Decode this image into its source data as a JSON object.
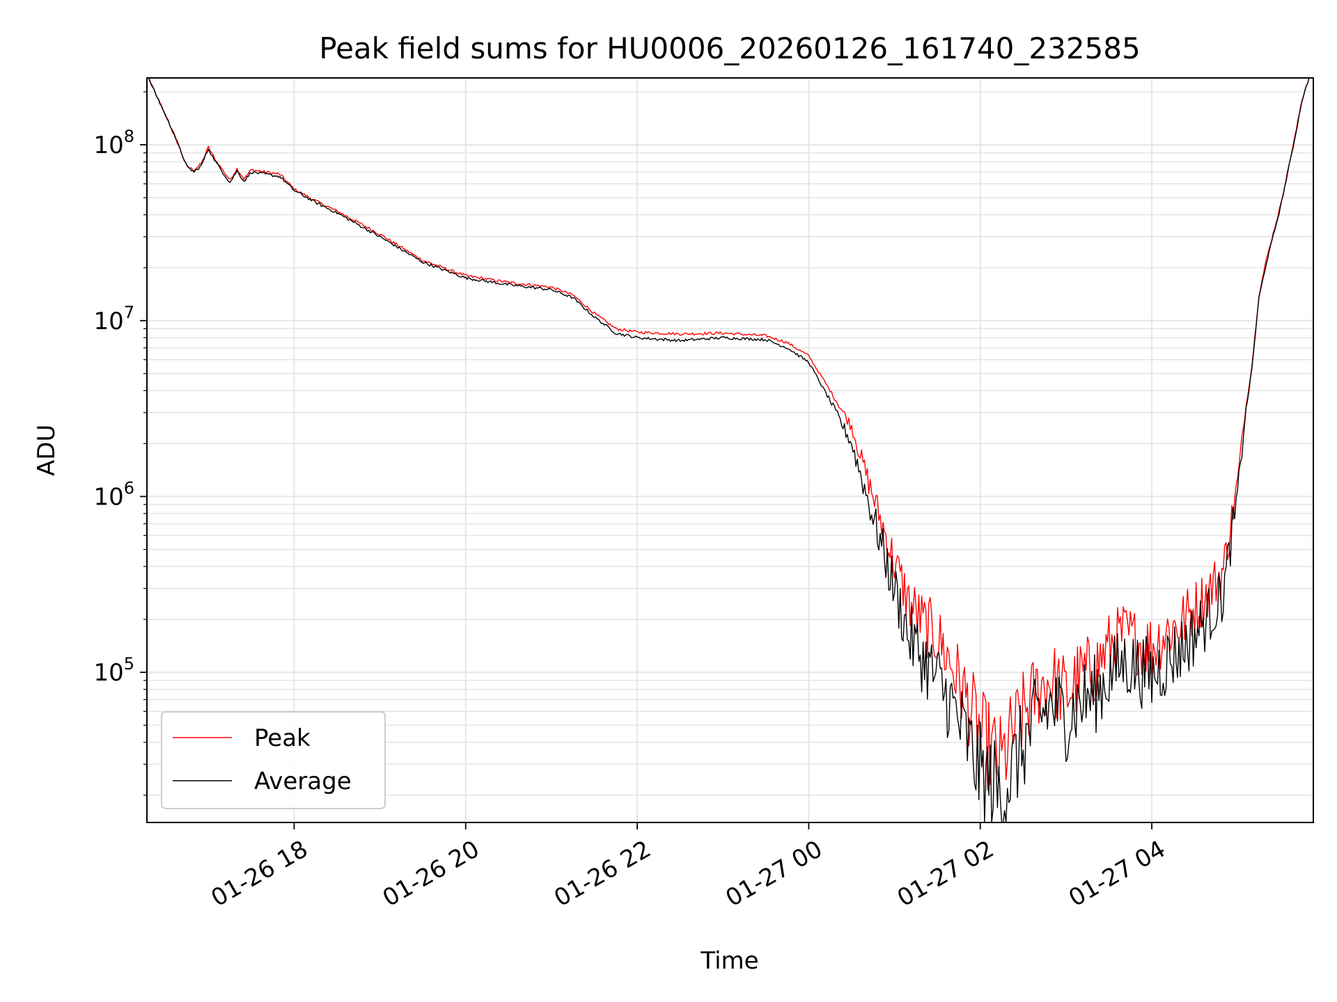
{
  "chart_data": {
    "type": "line",
    "title": "Peak field sums for HU0006_20260126_161740_232585",
    "xlabel": "Time",
    "ylabel": "ADU",
    "x_is_datetime": true,
    "xlim": [
      "2026-01-26 16:17",
      "2026-01-27 05:53"
    ],
    "ylim": [
      14000,
      240000000
    ],
    "yscale": "log",
    "grid": "on (major and minor)",
    "legend_position": "lower-left",
    "x_ticks": [
      "2026-01-26 18:00",
      "2026-01-26 20:00",
      "2026-01-26 22:00",
      "2026-01-27 00:00",
      "2026-01-27 02:00",
      "2026-01-27 04:00"
    ],
    "x_tick_labels": [
      "01-26 18",
      "01-26 20",
      "01-26 22",
      "01-27 00",
      "01-27 02",
      "01-27 04"
    ],
    "y_ticks": [
      {
        "value": 100000,
        "base": "10",
        "exp": "5"
      },
      {
        "value": 1000000,
        "base": "10",
        "exp": "6"
      },
      {
        "value": 10000000,
        "base": "10",
        "exp": "7"
      },
      {
        "value": 100000000,
        "base": "10",
        "exp": "8"
      }
    ],
    "series": [
      {
        "name": "Peak",
        "color": "#ff0000",
        "x": [
          "2026-01-26 16:18",
          "2026-01-26 16:35",
          "2026-01-26 16:40",
          "2026-01-26 16:45",
          "2026-01-26 16:50",
          "2026-01-26 16:55",
          "2026-01-26 17:00",
          "2026-01-26 17:05",
          "2026-01-26 17:10",
          "2026-01-26 17:15",
          "2026-01-26 17:20",
          "2026-01-26 17:25",
          "2026-01-26 17:30",
          "2026-01-26 17:40",
          "2026-01-26 17:50",
          "2026-01-26 18:00",
          "2026-01-26 18:15",
          "2026-01-26 18:30",
          "2026-01-26 19:00",
          "2026-01-26 19:30",
          "2026-01-26 20:00",
          "2026-01-26 20:30",
          "2026-01-26 21:00",
          "2026-01-26 21:15",
          "2026-01-26 21:30",
          "2026-01-26 21:45",
          "2026-01-26 22:00",
          "2026-01-26 22:30",
          "2026-01-26 23:00",
          "2026-01-26 23:30",
          "2026-01-26 23:45",
          "2026-01-27 00:00",
          "2026-01-27 00:15",
          "2026-01-27 00:30",
          "2026-01-27 00:40",
          "2026-01-27 00:50",
          "2026-01-27 01:00",
          "2026-01-27 01:10",
          "2026-01-27 01:20",
          "2026-01-27 01:30",
          "2026-01-27 01:40",
          "2026-01-27 01:50",
          "2026-01-27 02:00",
          "2026-01-27 02:10",
          "2026-01-27 02:15",
          "2026-01-27 02:20",
          "2026-01-27 02:30",
          "2026-01-27 02:40",
          "2026-01-27 02:50",
          "2026-01-27 03:00",
          "2026-01-27 03:10",
          "2026-01-27 03:20",
          "2026-01-27 03:30",
          "2026-01-27 03:40",
          "2026-01-27 03:50",
          "2026-01-27 04:00",
          "2026-01-27 04:10",
          "2026-01-27 04:20",
          "2026-01-27 04:30",
          "2026-01-27 04:40",
          "2026-01-27 04:50",
          "2026-01-27 05:00",
          "2026-01-27 05:05",
          "2026-01-27 05:10",
          "2026-01-27 05:15",
          "2026-01-27 05:20",
          "2026-01-27 05:30",
          "2026-01-27 05:40",
          "2026-01-27 05:45",
          "2026-01-27 05:50"
        ],
        "values": [
          240000000,
          120000000,
          95000000,
          75000000,
          72000000,
          78000000,
          97000000,
          82000000,
          72000000,
          63000000,
          73000000,
          64000000,
          72000000,
          70000000,
          68000000,
          56000000,
          48000000,
          42000000,
          31000000,
          22000000,
          18000000,
          16500000,
          15500000,
          14000000,
          11000000,
          9000000,
          8600000,
          8400000,
          8500000,
          8200000,
          7500000,
          6300000,
          4000000,
          2500000,
          1350000,
          750000,
          420000,
          250000,
          190000,
          160000,
          110000,
          72000,
          45000,
          34000,
          30000,
          40000,
          58000,
          80000,
          92000,
          75000,
          95000,
          105000,
          140000,
          165000,
          150000,
          140000,
          170000,
          190000,
          230000,
          290000,
          380000,
          1200000,
          2900000,
          5500000,
          14000000,
          22000000,
          45000000,
          110000000,
          180000000,
          240000000
        ]
      },
      {
        "name": "Average",
        "color": "#000000",
        "x": [
          "2026-01-26 16:18",
          "2026-01-26 16:35",
          "2026-01-26 16:40",
          "2026-01-26 16:45",
          "2026-01-26 16:50",
          "2026-01-26 16:55",
          "2026-01-26 17:00",
          "2026-01-26 17:05",
          "2026-01-26 17:10",
          "2026-01-26 17:15",
          "2026-01-26 17:20",
          "2026-01-26 17:25",
          "2026-01-26 17:30",
          "2026-01-26 17:40",
          "2026-01-26 17:50",
          "2026-01-26 18:00",
          "2026-01-26 18:15",
          "2026-01-26 18:30",
          "2026-01-26 19:00",
          "2026-01-26 19:30",
          "2026-01-26 20:00",
          "2026-01-26 20:30",
          "2026-01-26 21:00",
          "2026-01-26 21:15",
          "2026-01-26 21:30",
          "2026-01-26 21:45",
          "2026-01-26 22:00",
          "2026-01-26 22:30",
          "2026-01-26 23:00",
          "2026-01-26 23:30",
          "2026-01-26 23:45",
          "2026-01-27 00:00",
          "2026-01-27 00:15",
          "2026-01-27 00:30",
          "2026-01-27 00:40",
          "2026-01-27 00:50",
          "2026-01-27 01:00",
          "2026-01-27 01:10",
          "2026-01-27 01:20",
          "2026-01-27 01:30",
          "2026-01-27 01:40",
          "2026-01-27 01:50",
          "2026-01-27 02:00",
          "2026-01-27 02:10",
          "2026-01-27 02:15",
          "2026-01-27 02:20",
          "2026-01-27 02:30",
          "2026-01-27 02:40",
          "2026-01-27 02:50",
          "2026-01-27 03:00",
          "2026-01-27 03:10",
          "2026-01-27 03:20",
          "2026-01-27 03:30",
          "2026-01-27 03:40",
          "2026-01-27 03:50",
          "2026-01-27 04:00",
          "2026-01-27 04:10",
          "2026-01-27 04:20",
          "2026-01-27 04:30",
          "2026-01-27 04:40",
          "2026-01-27 04:50",
          "2026-01-27 05:00",
          "2026-01-27 05:05",
          "2026-01-27 05:10",
          "2026-01-27 05:15",
          "2026-01-27 05:20",
          "2026-01-27 05:30",
          "2026-01-27 05:40",
          "2026-01-27 05:45",
          "2026-01-27 05:50"
        ],
        "values": [
          240000000,
          120000000,
          95000000,
          75000000,
          70000000,
          76000000,
          95000000,
          80000000,
          70000000,
          61000000,
          71000000,
          62000000,
          70000000,
          68000000,
          66000000,
          55000000,
          47000000,
          41000000,
          30000000,
          21500000,
          17500000,
          16000000,
          15000000,
          13500000,
          10500000,
          8500000,
          8000000,
          7700000,
          8000000,
          7800000,
          7000000,
          5800000,
          3500000,
          2000000,
          1050000,
          560000,
          300000,
          160000,
          120000,
          90000,
          65000,
          42000,
          27000,
          22000,
          19000,
          25000,
          38000,
          55000,
          65000,
          55000,
          68000,
          75000,
          95000,
          115000,
          105000,
          95000,
          115000,
          135000,
          165000,
          210000,
          280000,
          1000000,
          2700000,
          5300000,
          13500000,
          21000000,
          44000000,
          108000000,
          178000000,
          240000000
        ]
      }
    ]
  }
}
